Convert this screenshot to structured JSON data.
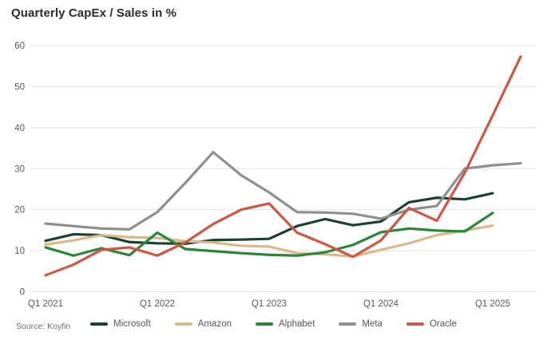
{
  "page": {
    "title": "Quarterly CapEx / Sales in %",
    "source": "Source: Koyfin"
  },
  "chart_data": {
    "type": "line",
    "title": "Quarterly CapEx / Sales in %",
    "x": [
      "Q1 2021",
      "Q2 2021",
      "Q3 2021",
      "Q4 2021",
      "Q1 2022",
      "Q2 2022",
      "Q3 2022",
      "Q4 2022",
      "Q1 2023",
      "Q2 2023",
      "Q3 2023",
      "Q4 2023",
      "Q1 2024",
      "Q2 2024",
      "Q3 2024",
      "Q4 2024",
      "Q1 2025",
      "Q2 2025"
    ],
    "x_tick_every": 4,
    "x_tick_labels": [
      "Q1 2021",
      "Q1 2022",
      "Q1 2023",
      "Q1 2024",
      "Q1 2025"
    ],
    "ylim": [
      0,
      60
    ],
    "y_ticks": [
      0,
      10,
      20,
      30,
      40,
      50,
      60
    ],
    "grid": "horizontal",
    "legend_position": "bottom",
    "series": [
      {
        "name": "Microsoft",
        "color": "#1d4031",
        "values": [
          12.4,
          14.0,
          13.8,
          12.1,
          11.8,
          11.7,
          12.6,
          12.7,
          12.9,
          16.0,
          17.7,
          16.2,
          17.1,
          21.8,
          22.9,
          22.5,
          24.0,
          null
        ]
      },
      {
        "name": "Amazon",
        "color": "#d9b98c",
        "values": [
          11.5,
          12.5,
          13.8,
          13.3,
          13.1,
          12.3,
          12.0,
          11.2,
          11.0,
          9.4,
          9.1,
          8.6,
          10.2,
          11.8,
          13.8,
          14.9,
          16.1,
          null
        ]
      },
      {
        "name": "Alphabet",
        "color": "#2a8638",
        "values": [
          10.8,
          8.8,
          10.6,
          8.9,
          14.4,
          10.4,
          9.9,
          9.4,
          9.0,
          8.8,
          9.6,
          11.4,
          14.5,
          15.4,
          14.9,
          14.7,
          19.2,
          null
        ]
      },
      {
        "name": "Meta",
        "color": "#8f8f8f",
        "values": [
          16.6,
          16.0,
          15.4,
          15.2,
          19.4,
          26.5,
          34.0,
          28.4,
          24.2,
          19.4,
          19.3,
          19.0,
          17.8,
          20.0,
          20.9,
          30.0,
          30.8,
          31.3
        ]
      },
      {
        "name": "Oracle",
        "color": "#cb5745",
        "values": [
          4.0,
          6.6,
          10.2,
          10.8,
          8.8,
          12.0,
          16.5,
          20.0,
          21.5,
          14.4,
          11.6,
          8.5,
          12.5,
          20.4,
          17.3,
          29.0,
          43.0,
          57.3
        ]
      }
    ]
  }
}
